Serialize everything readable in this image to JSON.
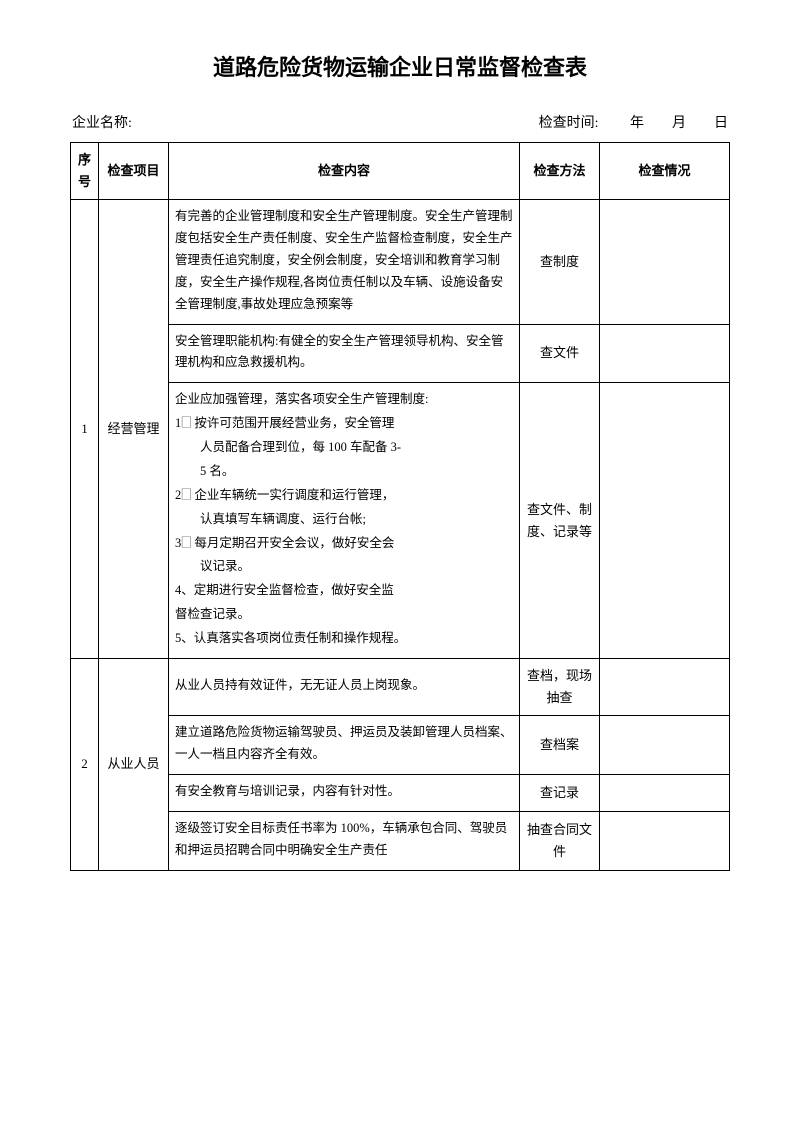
{
  "title": "道路危险货物运输企业日常监督检查表",
  "meta": {
    "company_label": "企业名称:",
    "date_label": "检查时间:",
    "date_value": "　　年　　月　　日"
  },
  "headers": {
    "num": "序号",
    "item": "检查项目",
    "content": "检查内容",
    "method": "检查方法",
    "status": "检查情况"
  },
  "rows": [
    {
      "num": "1",
      "item": "经营管理",
      "cells": [
        {
          "content_lines": [
            "有完善的企业管理制度和安全生产管理制度。安全生产管理制度包括安全生产责任制度、安全生产监督检查制度，安全生产管理责任追究制度，安全例会制度，安全培训和教育学习制度，安全生产操作规程,各岗位责任制以及车辆、设施设备安全管理制度,事故处理应急预案等"
          ],
          "method": "查制度"
        },
        {
          "content_lines": [
            "安全管理职能机构:有健全的安全生产管理领导机构、安全管理机构和应急救援机构。"
          ],
          "method": "查文件"
        },
        {
          "content_lines": [
            "企业应加强管理，落实各项安全生产管理制度:",
            "1🗌 按许可范围开展经营业务，安全管理",
            "　　人员配备合理到位，每 100 车配备 3-",
            "　　5 名。",
            "2🗌 企业车辆统一实行调度和运行管理，",
            "　　认真填写车辆调度、运行台帐;",
            "3🗌 每月定期召开安全会议，做好安全会",
            "　　议记录。",
            "4、定期进行安全监督检查，做好安全监",
            "督检查记录。",
            "5、认真落实各项岗位责任制和操作规程。"
          ],
          "method": "查文件、制度、记录等"
        }
      ]
    },
    {
      "num": "2",
      "item": "从业人员",
      "cells": [
        {
          "content_lines": [
            "从业人员持有效证件，无无证人员上岗现象。"
          ],
          "method": "查档，现场抽查"
        },
        {
          "content_lines": [
            "建立道路危险货物运输驾驶员、押运员及装卸管理人员档案、一人一档且内容齐全有效。"
          ],
          "method": "查档案"
        },
        {
          "content_lines": [
            "有安全教育与培训记录，内容有针对性。"
          ],
          "method": "查记录"
        },
        {
          "content_lines": [
            "逐级签订安全目标责任书率为 100%，车辆承包合同、驾驶员和押运员招聘合同中明确安全生产责任"
          ],
          "method": "抽查合同文件"
        }
      ]
    }
  ]
}
